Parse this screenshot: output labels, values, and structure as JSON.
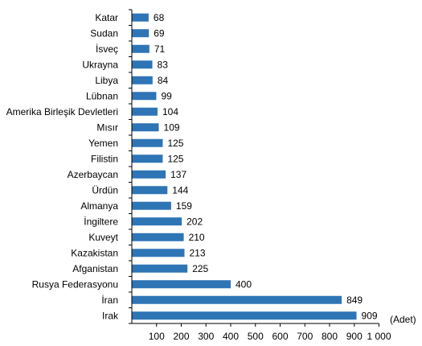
{
  "chart_data": {
    "type": "bar",
    "orientation": "horizontal",
    "categories": [
      "Katar",
      "Sudan",
      "İsveç",
      "Ukrayna",
      "Libya",
      "Lübnan",
      "Amerika Birleşik Devletleri",
      "Mısır",
      "Yemen",
      "Filistin",
      "Azerbaycan",
      "Ürdün",
      "Almanya",
      "İngiltere",
      "Kuveyt",
      "Kazakistan",
      "Afganistan",
      "Rusya Federasyonu",
      "İran",
      "Irak"
    ],
    "values": [
      68,
      69,
      71,
      83,
      84,
      99,
      104,
      109,
      125,
      125,
      137,
      144,
      159,
      202,
      210,
      213,
      225,
      400,
      849,
      909
    ],
    "value_labels": [
      "68",
      "69",
      "71",
      "83",
      "84",
      "99",
      "104",
      "109",
      "125",
      "125",
      "137",
      "144",
      "159",
      "202",
      "210",
      "213",
      "225",
      "400",
      "849",
      "909"
    ],
    "xlim": [
      0,
      1000
    ],
    "xticks": [
      100,
      200,
      300,
      400,
      500,
      600,
      700,
      800,
      900,
      1000
    ],
    "xtick_labels": [
      "100",
      "200",
      "300",
      "400",
      "500",
      "600",
      "700",
      "800",
      "900",
      "1 000"
    ],
    "unit_label": "(Adet)",
    "bar_color": "#2e75b6",
    "grid": false,
    "legend": "none"
  }
}
